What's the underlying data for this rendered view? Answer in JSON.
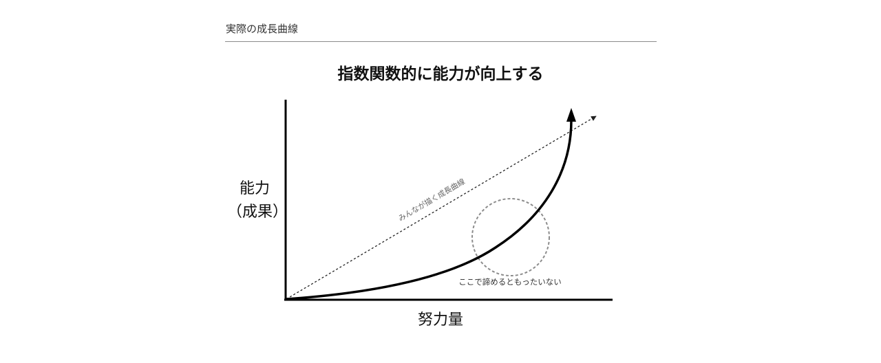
{
  "header": {
    "label": "実際の成長曲線"
  },
  "diagram": {
    "title": "指数関数的に能力が向上する",
    "y_label_line1": "能力",
    "y_label_line2": "（成果）",
    "x_label": "努力量",
    "dashed_line_label": "みんなが描く成長曲線",
    "circle_note": "ここで諦めるともったいない",
    "colors": {
      "curve": "#000000",
      "dashed_line": "#222222",
      "circle": "#8c8c8c",
      "note_text": "#333333"
    }
  }
}
